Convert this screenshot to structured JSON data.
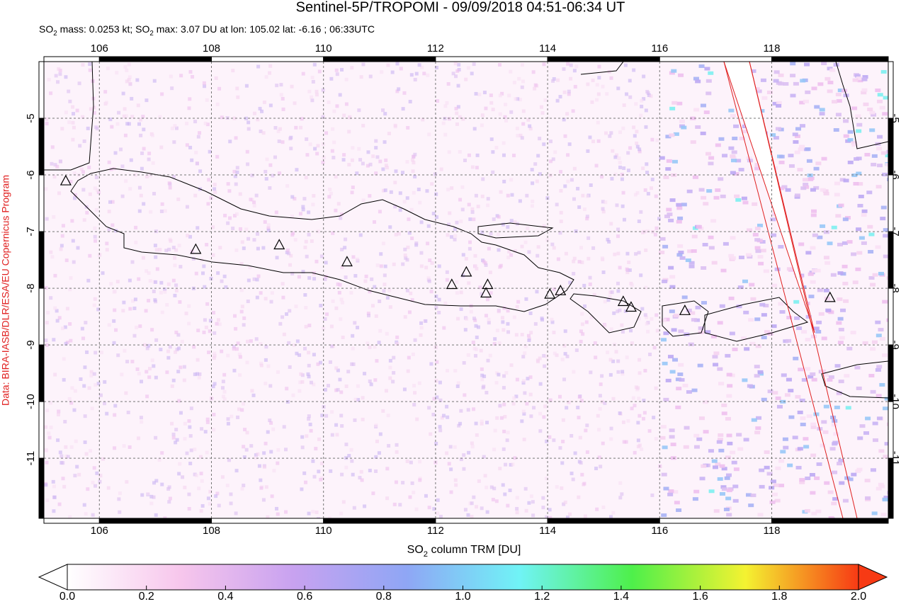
{
  "title": "Sentinel-5P/TROPOMI - 09/09/2018 04:51-06:34 UT",
  "subtitle": [
    {
      "text": "SO"
    },
    {
      "text": "2",
      "sub": true
    },
    {
      "text": " mass: 0.0253 kt; SO"
    },
    {
      "text": "2",
      "sub": true
    },
    {
      "text": " max: 3.07 DU at lon: 105.02 lat: -6.16 ; 06:33UTC"
    }
  ],
  "credit": "Data: BIRA-IASB/DLR/ESA/EU Copernicus Program",
  "map": {
    "xlim": [
      105.01,
      120.08
    ],
    "ylim": [
      -12.06,
      -4.0
    ],
    "xticks": [
      106,
      108,
      110,
      112,
      114,
      116,
      118
    ],
    "yticks": [
      -5,
      -6,
      -7,
      -8,
      -9,
      -10,
      -11
    ],
    "grid": true,
    "volcanoes": {
      "lon": [
        105.4,
        107.72,
        109.21,
        110.42,
        112.29,
        112.55,
        112.93,
        112.9,
        114.04,
        114.23,
        115.35,
        115.49,
        116.45,
        119.04
      ],
      "lat": [
        -6.1,
        -7.31,
        -7.23,
        -7.53,
        -7.93,
        -7.71,
        -7.93,
        -8.08,
        -8.1,
        -8.04,
        -8.23,
        -8.33,
        -8.39,
        -8.16
      ]
    }
  },
  "colorbar": {
    "label": [
      {
        "text": "SO"
      },
      {
        "text": "2",
        "sub": true
      },
      {
        "text": " column TRM [DU]"
      }
    ],
    "lim": [
      0,
      2
    ],
    "ticks": [
      {
        "value": 0,
        "label": "0.0"
      },
      0.2,
      0.4,
      0.6,
      0.8,
      {
        "value": 1,
        "label": "1.0"
      },
      1.2,
      1.4,
      1.6,
      1.8,
      {
        "value": 2,
        "label": "2.0"
      }
    ],
    "colors": [
      "#ffffff",
      "#f7c6ec",
      "#c8a2f0",
      "#8fa6f5",
      "#70f3f6",
      "#4ef04a",
      "#f4f231",
      "#f73a14"
    ]
  }
}
